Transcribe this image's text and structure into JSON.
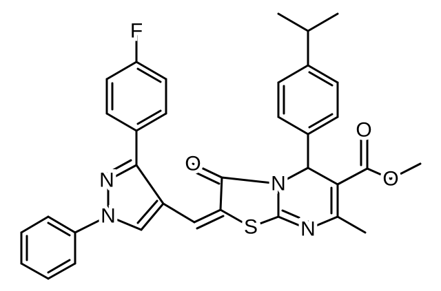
{
  "atoms": {
    "fluorine": "F",
    "pyrazole_n2": "N",
    "pyrazole_n1": "N",
    "keto_oxygen": "O",
    "ring_nitrogen": "N",
    "sulfur": "S",
    "imine_nitrogen": "N",
    "carbonyl_oxygen": "O",
    "ester_oxygen": "O"
  }
}
